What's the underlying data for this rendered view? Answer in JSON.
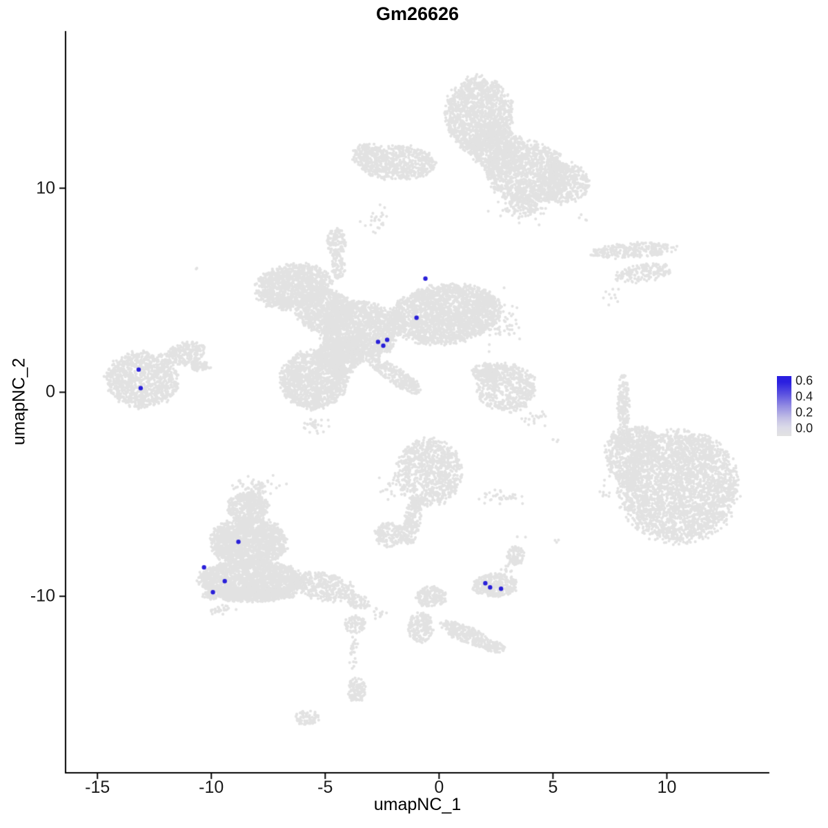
{
  "chart_data": {
    "type": "scatter",
    "title": "Gm26626",
    "xlabel": "umapNC_1",
    "ylabel": "umapNC_2",
    "xlim": [
      -16.4,
      14.5
    ],
    "ylim": [
      -18.65,
      17.7
    ],
    "x_ticks": [
      -15,
      -10,
      -5,
      0,
      5,
      10
    ],
    "y_ticks": [
      -10,
      0,
      10
    ],
    "grid": false,
    "background_color": "#ffffff",
    "point_color_low": "#e2e2e2",
    "point_color_high": "#2a20d9",
    "point_radius_px": 2.1,
    "highlight_radius_px": 3.2,
    "legend": {
      "position": "right",
      "labels": [
        "0.6",
        "0.4",
        "0.2",
        "0.0"
      ],
      "gradient": [
        {
          "offset": 0,
          "color": "#2a1fe0"
        },
        {
          "offset": 10,
          "color": "#2a1fe0"
        },
        {
          "offset": 30,
          "color": "#5b52e0"
        },
        {
          "offset": 50,
          "color": "#938ce2"
        },
        {
          "offset": 70,
          "color": "#c2bfe5"
        },
        {
          "offset": 85,
          "color": "#dbdae8"
        },
        {
          "offset": 100,
          "color": "#e2e2e2"
        }
      ]
    },
    "background_clusters": [
      {
        "x": 1.76,
        "y": 13.6,
        "rx": 1.45,
        "ry": 1.86,
        "n": 1400
      },
      {
        "x": 3.87,
        "y": 10.74,
        "rx": 1.81,
        "ry": 1.52,
        "rot": -15,
        "n": 1300
      },
      {
        "x": 5.53,
        "y": 10.24,
        "rx": 1.06,
        "ry": 1.01,
        "n": 400
      },
      {
        "x": -1.87,
        "y": 11.25,
        "rx": 1.66,
        "ry": 0.84,
        "n": 600
      },
      {
        "x": -3.07,
        "y": 11.59,
        "rx": 0.75,
        "ry": 0.6,
        "n": 150
      },
      {
        "x": 2.51,
        "y": 11.93,
        "rx": 1.2,
        "ry": 1.0,
        "n": 500
      },
      {
        "x": 3.72,
        "y": 9.05,
        "rx": 0.8,
        "ry": 0.5,
        "n": 120,
        "kind": "gauss"
      },
      {
        "x": -2.7,
        "y": 8.4,
        "rx": 0.5,
        "ry": 0.6,
        "n": 25,
        "kind": "gauss"
      },
      {
        "x": 6.23,
        "y": 8.45,
        "rx": 0.3,
        "ry": 0.3,
        "n": 4,
        "kind": "gauss"
      },
      {
        "x": 8.55,
        "y": 6.96,
        "rx": 1.87,
        "ry": 0.37,
        "rot": 4,
        "n": 260
      },
      {
        "x": 9.0,
        "y": 5.84,
        "rx": 1.27,
        "ry": 0.44,
        "rot": 8,
        "n": 160
      },
      {
        "x": 7.65,
        "y": 4.66,
        "rx": 0.35,
        "ry": 0.35,
        "n": 10,
        "kind": "gauss"
      },
      {
        "x": 0.25,
        "y": 3.82,
        "rx": 2.42,
        "ry": 1.42,
        "rot": 8,
        "n": 2200
      },
      {
        "x": -3.53,
        "y": 2.97,
        "rx": 1.66,
        "ry": 1.52,
        "n": 1600
      },
      {
        "x": -6.4,
        "y": 5.17,
        "rx": 1.66,
        "ry": 1.08,
        "rot": 10,
        "n": 1100
      },
      {
        "x": -5.04,
        "y": 3.99,
        "rx": 1.21,
        "ry": 1.01,
        "n": 700
      },
      {
        "x": -5.49,
        "y": 0.61,
        "rx": 1.45,
        "ry": 1.42,
        "n": 1200
      },
      {
        "x": -4.43,
        "y": 1.79,
        "rx": 1.06,
        "ry": 0.91,
        "n": 500
      },
      {
        "x": -1.87,
        "y": 0.78,
        "rx": 1.36,
        "ry": 0.41,
        "rot": -35,
        "n": 260
      },
      {
        "x": -4.52,
        "y": 7.3,
        "rx": 0.42,
        "ry": 0.74,
        "n": 120
      },
      {
        "x": -4.43,
        "y": 6.18,
        "rx": 0.3,
        "ry": 0.6,
        "n": 70
      },
      {
        "x": -5.49,
        "y": -1.59,
        "rx": 0.6,
        "ry": 0.4,
        "n": 30,
        "kind": "gauss"
      },
      {
        "x": -10.6,
        "y": 6.0,
        "rx": 0.2,
        "ry": 0.2,
        "n": 2,
        "kind": "gauss"
      },
      {
        "x": -13.04,
        "y": 0.61,
        "rx": 1.57,
        "ry": 1.35,
        "n": 1000
      },
      {
        "x": -11.16,
        "y": 1.89,
        "rx": 0.91,
        "ry": 0.54,
        "rot": 15,
        "n": 220
      },
      {
        "x": -10.47,
        "y": 1.28,
        "rx": 0.45,
        "ry": 0.25,
        "n": 60
      },
      {
        "x": 2.96,
        "y": 0.24,
        "rx": 1.27,
        "ry": 1.18,
        "n": 550
      },
      {
        "x": 2.06,
        "y": 0.95,
        "rx": 0.6,
        "ry": 0.45,
        "n": 150
      },
      {
        "x": 2.81,
        "y": 3.31,
        "rx": 0.75,
        "ry": 1.0,
        "n": 60,
        "kind": "gauss"
      },
      {
        "x": 1.91,
        "y": 4.66,
        "rx": 0.25,
        "ry": 0.25,
        "n": 8,
        "kind": "gauss"
      },
      {
        "x": 4.17,
        "y": -1.2,
        "rx": 0.5,
        "ry": 0.5,
        "n": 20,
        "kind": "gauss"
      },
      {
        "x": 8.1,
        "y": -0.57,
        "rx": 0.27,
        "ry": 1.42,
        "n": 150
      },
      {
        "x": 7.95,
        "y": -2.43,
        "rx": 0.21,
        "ry": 0.68,
        "n": 60
      },
      {
        "x": 10.51,
        "y": -4.63,
        "rx": 2.57,
        "ry": 2.7,
        "n": 3000
      },
      {
        "x": 8.1,
        "y": -3.28,
        "rx": 0.75,
        "ry": 1.35,
        "rot": 15,
        "n": 300
      },
      {
        "x": 8.85,
        "y": -2.26,
        "rx": 0.75,
        "ry": 0.6,
        "n": 200
      },
      {
        "x": 7.35,
        "y": -4.8,
        "rx": 0.3,
        "ry": 0.4,
        "n": 10,
        "kind": "gauss"
      },
      {
        "x": -0.45,
        "y": -3.95,
        "rx": 1.45,
        "ry": 1.62,
        "n": 900
      },
      {
        "x": -1.17,
        "y": -6.32,
        "rx": 0.36,
        "ry": 1.18,
        "rot": -8,
        "n": 180
      },
      {
        "x": -2.17,
        "y": -6.99,
        "rx": 0.66,
        "ry": 0.61,
        "n": 160
      },
      {
        "x": 2.66,
        "y": -5.2,
        "rx": 0.85,
        "ry": 0.3,
        "n": 40,
        "kind": "gauss"
      },
      {
        "x": -2.17,
        "y": -4.63,
        "rx": 0.4,
        "ry": 0.5,
        "n": 15,
        "kind": "gauss"
      },
      {
        "x": -8.36,
        "y": -5.64,
        "rx": 0.91,
        "ry": 0.74,
        "n": 400
      },
      {
        "x": -8.36,
        "y": -7.33,
        "rx": 1.66,
        "ry": 1.18,
        "n": 1500
      },
      {
        "x": -8.27,
        "y": -9.19,
        "rx": 2.26,
        "ry": 0.95,
        "n": 1800
      },
      {
        "x": -8.36,
        "y": -9.93,
        "rx": 2.05,
        "ry": 0.34,
        "n": 500
      },
      {
        "x": -5.04,
        "y": -9.53,
        "rx": 1.36,
        "ry": 0.68,
        "rot": -12,
        "n": 350
      },
      {
        "x": -3.53,
        "y": -10.27,
        "rx": 0.54,
        "ry": 0.34,
        "rot": -15,
        "n": 80
      },
      {
        "x": -8.06,
        "y": -4.63,
        "rx": 0.8,
        "ry": 0.5,
        "n": 60,
        "kind": "gauss"
      },
      {
        "x": -9.57,
        "y": -10.61,
        "rx": 0.5,
        "ry": 0.25,
        "n": 25,
        "kind": "gauss"
      },
      {
        "x": -2.77,
        "y": -10.81,
        "rx": 0.35,
        "ry": 0.25,
        "n": 12,
        "kind": "gauss"
      },
      {
        "x": 2.45,
        "y": -9.46,
        "rx": 0.97,
        "ry": 0.57,
        "n": 320
      },
      {
        "x": 3.36,
        "y": -8.01,
        "rx": 0.36,
        "ry": 0.47,
        "n": 90
      },
      {
        "x": 2.97,
        "y": -8.68,
        "rx": 0.3,
        "ry": 0.3,
        "n": 15,
        "kind": "gauss"
      },
      {
        "x": -0.36,
        "y": -10.03,
        "rx": 0.66,
        "ry": 0.51,
        "n": 180
      },
      {
        "x": -0.81,
        "y": -11.55,
        "rx": 0.54,
        "ry": 0.74,
        "n": 200
      },
      {
        "x": 1.24,
        "y": -11.89,
        "rx": 1.27,
        "ry": 0.41,
        "rot": -25,
        "n": 260
      },
      {
        "x": 2.45,
        "y": -12.5,
        "rx": 0.42,
        "ry": 0.3,
        "n": 70
      },
      {
        "x": -3.68,
        "y": -11.39,
        "rx": 0.48,
        "ry": 0.44,
        "n": 90
      },
      {
        "x": -3.77,
        "y": -12.74,
        "rx": 0.18,
        "ry": 0.85,
        "n": 25,
        "kind": "gauss"
      },
      {
        "x": -3.62,
        "y": -14.59,
        "rx": 0.42,
        "ry": 0.57,
        "n": 110
      },
      {
        "x": -5.79,
        "y": -15.95,
        "rx": 0.51,
        "ry": 0.37,
        "n": 70
      },
      {
        "x": 5.08,
        "y": -2.26,
        "rx": 0.25,
        "ry": 0.25,
        "n": 4,
        "kind": "gauss"
      },
      {
        "x": 5.08,
        "y": -7.16,
        "rx": 0.2,
        "ry": 0.2,
        "n": 3,
        "kind": "gauss"
      },
      {
        "x": 3.57,
        "y": -6.99,
        "rx": 0.2,
        "ry": 0.2,
        "n": 2,
        "kind": "gauss"
      }
    ],
    "expressing_cells": [
      {
        "x": -0.6,
        "y": 5.57,
        "value": 0.6
      },
      {
        "x": -0.99,
        "y": 3.65,
        "value": 0.55
      },
      {
        "x": -2.68,
        "y": 2.47,
        "value": 0.6
      },
      {
        "x": -2.28,
        "y": 2.57,
        "value": 0.5
      },
      {
        "x": -2.45,
        "y": 2.28,
        "value": 0.55
      },
      {
        "x": -13.19,
        "y": 1.11,
        "value": 0.6
      },
      {
        "x": -13.1,
        "y": 0.2,
        "value": 0.55
      },
      {
        "x": -8.81,
        "y": -7.33,
        "value": 0.6
      },
      {
        "x": -10.32,
        "y": -8.58,
        "value": 0.55
      },
      {
        "x": -9.41,
        "y": -9.26,
        "value": 0.6
      },
      {
        "x": -9.93,
        "y": -9.8,
        "value": 0.55
      },
      {
        "x": 2.03,
        "y": -9.36,
        "value": 0.6
      },
      {
        "x": 2.24,
        "y": -9.56,
        "value": 0.5
      },
      {
        "x": 2.72,
        "y": -9.63,
        "value": 0.55
      }
    ]
  }
}
